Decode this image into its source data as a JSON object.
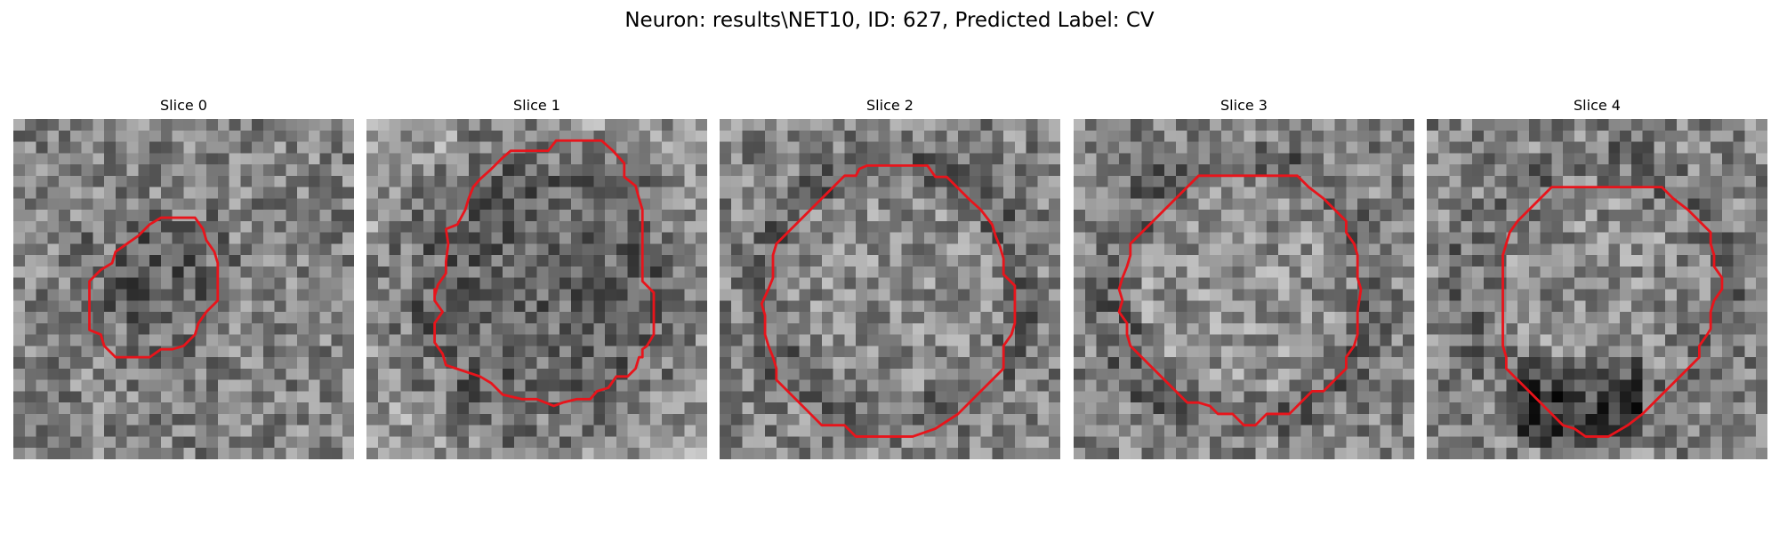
{
  "figure": {
    "title": "Neuron: results\\NET10, ID: 627, Predicted Label: CV",
    "contour_color": "#e8141b",
    "colormap": "grayscale"
  },
  "slices": [
    {
      "title": "Slice 0",
      "seed": 11,
      "dark_region": "inside contour, center"
    },
    {
      "title": "Slice 1",
      "seed": 23,
      "dark_region": "inside contour, ring"
    },
    {
      "title": "Slice 2",
      "seed": 37,
      "dark_region": "outer ring"
    },
    {
      "title": "Slice 3",
      "seed": 41,
      "dark_region": "outer ring"
    },
    {
      "title": "Slice 4",
      "seed": 53,
      "dark_region": "bottom of contour"
    }
  ]
}
